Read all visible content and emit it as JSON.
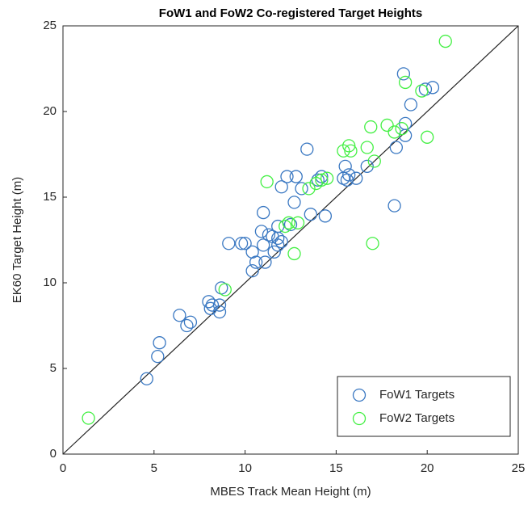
{
  "chart_data": {
    "type": "scatter",
    "title": "FoW1 and FoW2 Co-registered Target Heights",
    "x_label": "MBES Track Mean Height (m)",
    "y_label": "EK60 Target Height (m)",
    "xlim": [
      0,
      25
    ],
    "ylim": [
      0,
      25
    ],
    "xticks": [
      0,
      5,
      10,
      15,
      20,
      25
    ],
    "yticks": [
      0,
      5,
      10,
      15,
      20,
      25
    ],
    "legend": "bottom-right",
    "series": [
      {
        "name": "FoW1 Targets",
        "color": "#3a78c2",
        "x": [
          4.6,
          5.2,
          5.3,
          6.4,
          6.8,
          7.0,
          8.0,
          8.1,
          8.2,
          8.6,
          8.6,
          8.7,
          9.1,
          9.8,
          10.0,
          10.4,
          10.4,
          10.6,
          10.9,
          11.0,
          11.0,
          11.1,
          11.3,
          11.5,
          11.6,
          11.8,
          11.8,
          11.8,
          12.0,
          12.0,
          12.3,
          12.5,
          12.7,
          12.8,
          13.1,
          13.4,
          13.6,
          14.0,
          14.2,
          14.4,
          15.4,
          15.5,
          15.6,
          15.7,
          16.1,
          16.7,
          18.2,
          18.3,
          18.7,
          18.8,
          18.8,
          19.1,
          19.9,
          20.3
        ],
        "values": [
          4.4,
          5.7,
          6.5,
          8.1,
          7.5,
          7.7,
          8.9,
          8.5,
          8.7,
          8.3,
          8.7,
          9.7,
          12.3,
          12.3,
          12.3,
          10.7,
          11.8,
          11.2,
          13.0,
          14.1,
          12.2,
          11.2,
          12.8,
          12.7,
          11.8,
          12.2,
          12.6,
          13.3,
          12.4,
          15.6,
          16.2,
          13.4,
          14.7,
          16.2,
          15.5,
          17.8,
          14.0,
          16.0,
          16.2,
          13.9,
          16.1,
          16.8,
          16.0,
          16.3,
          16.1,
          16.8,
          14.5,
          17.9,
          22.2,
          18.6,
          19.3,
          20.4,
          21.3,
          21.4
        ]
      },
      {
        "name": "FoW2 Targets",
        "color": "#44f044",
        "x": [
          1.4,
          8.9,
          11.2,
          12.2,
          12.4,
          12.7,
          12.9,
          13.5,
          13.9,
          14.2,
          14.5,
          15.4,
          15.7,
          15.8,
          16.7,
          16.9,
          17.0,
          17.1,
          17.8,
          18.2,
          18.6,
          18.8,
          19.7,
          20.0,
          21.0
        ],
        "values": [
          2.1,
          9.6,
          15.9,
          13.3,
          13.5,
          11.7,
          13.5,
          15.5,
          15.8,
          16.0,
          16.1,
          17.7,
          18.0,
          17.7,
          17.9,
          19.1,
          12.3,
          17.1,
          19.2,
          18.8,
          19.0,
          21.7,
          21.2,
          18.5,
          24.1
        ]
      }
    ]
  }
}
